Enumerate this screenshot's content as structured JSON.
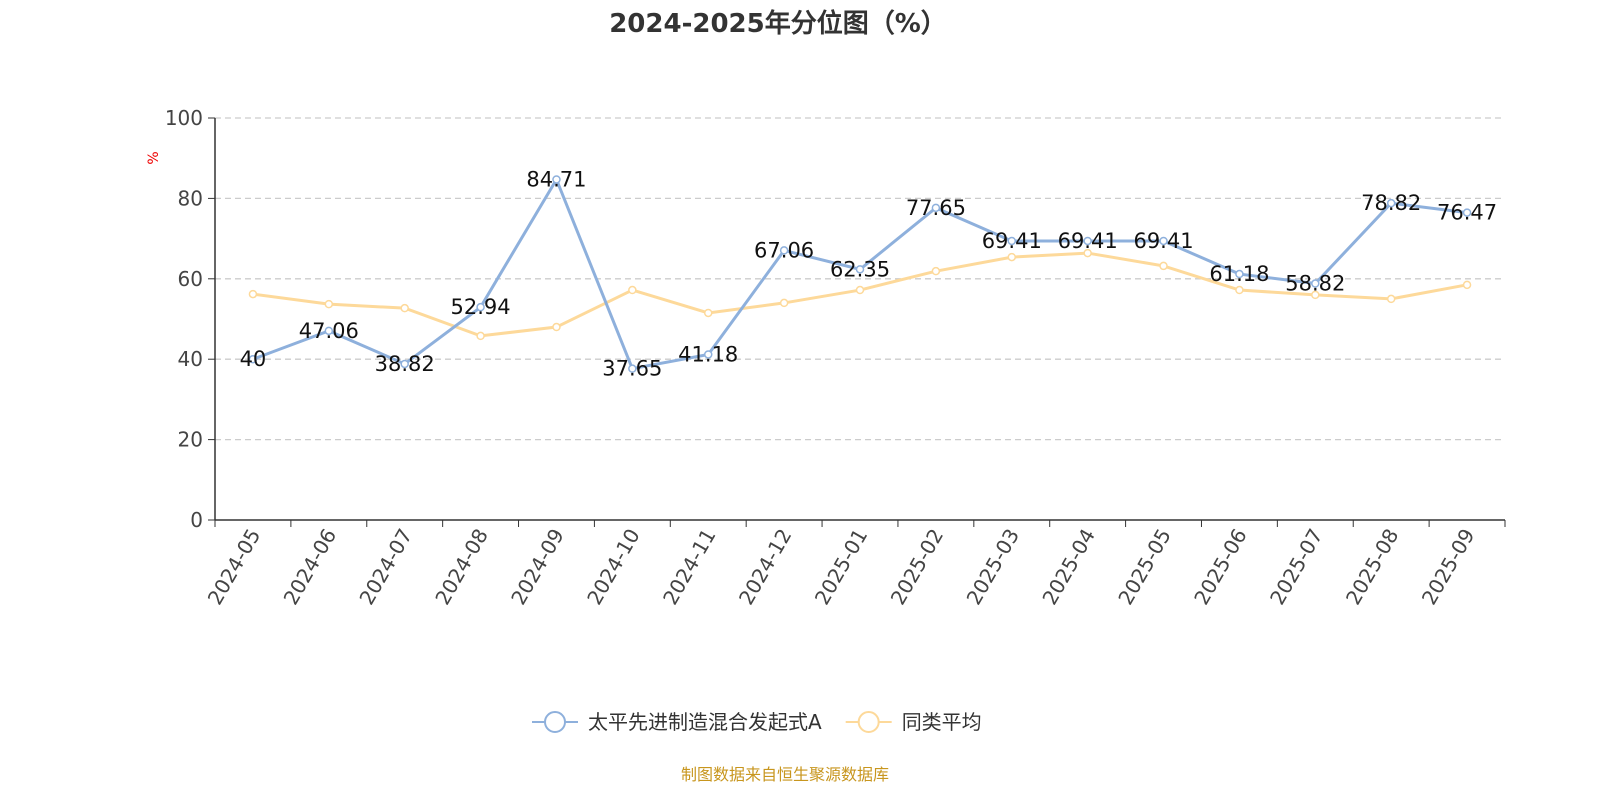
{
  "chart_data": {
    "type": "line",
    "title": "2024-2025年分位图（%）",
    "ylabel": "%",
    "xlabel": "",
    "ylim": [
      0,
      100
    ],
    "yticks": [
      0,
      20,
      40,
      60,
      80,
      100
    ],
    "grid": true,
    "legend_position": "bottom",
    "categories": [
      "2024-05",
      "2024-06",
      "2024-07",
      "2024-08",
      "2024-09",
      "2024-10",
      "2024-11",
      "2024-12",
      "2025-01",
      "2025-02",
      "2025-03",
      "2025-04",
      "2025-05",
      "2025-06",
      "2025-07",
      "2025-08",
      "2025-09"
    ],
    "series": [
      {
        "name": "太平先进制造混合发起式A",
        "color": "#8eb0dc",
        "show_labels": true,
        "values": [
          40,
          47.06,
          38.82,
          52.94,
          84.71,
          37.65,
          41.18,
          67.06,
          62.35,
          77.65,
          69.41,
          69.41,
          69.41,
          61.18,
          58.82,
          78.82,
          76.47
        ]
      },
      {
        "name": "同类平均",
        "color": "#fdd99a",
        "show_labels": false,
        "values": [
          56.2,
          53.7,
          52.7,
          45.8,
          48.0,
          57.2,
          51.5,
          54.0,
          57.2,
          61.9,
          65.4,
          66.4,
          63.2,
          57.2,
          56.0,
          55.0,
          58.5
        ]
      }
    ]
  },
  "footer": "制图数据来自恒生聚源数据库"
}
